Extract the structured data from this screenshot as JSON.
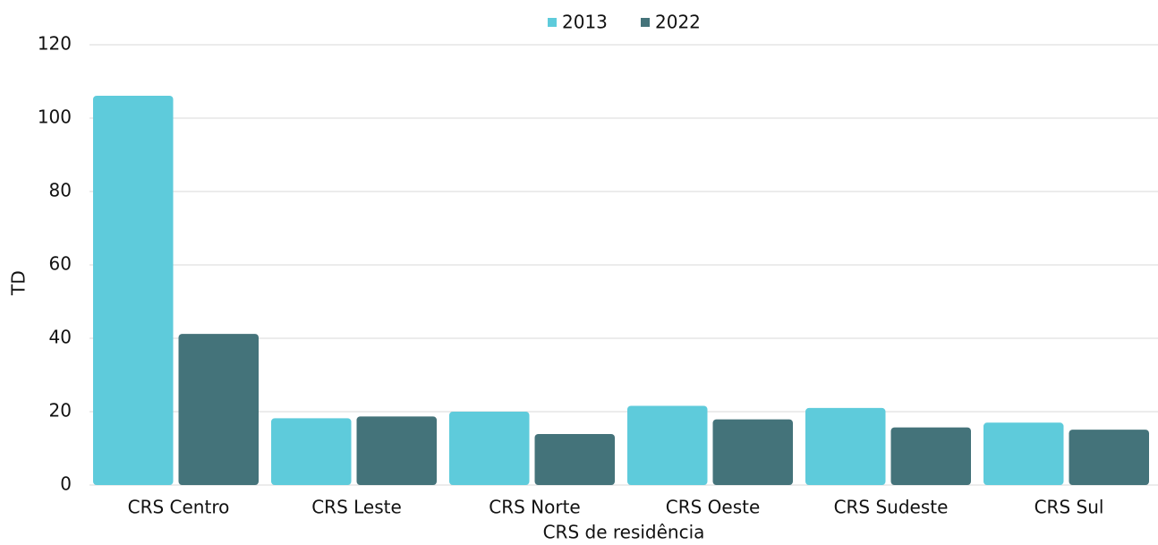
{
  "chart_data": {
    "type": "bar",
    "x_label": "CRS de residência",
    "y_label": "TD",
    "categories": [
      "CRS Centro",
      "CRS Leste",
      "CRS Norte",
      "CRS Oeste",
      "CRS Sudeste",
      "CRS Sul"
    ],
    "series": [
      {
        "name": "2013",
        "color": "#5ecbdb",
        "values": [
          106.1,
          18.2,
          20,
          21.6,
          21,
          17
        ]
      },
      {
        "name": "2022",
        "color": "#44737a",
        "values": [
          41.2,
          18.7,
          13.9,
          17.9,
          15.7,
          15.1
        ]
      }
    ],
    "ylim": [
      0,
      120
    ],
    "yticks": [
      0,
      20,
      40,
      60,
      80,
      100,
      120
    ],
    "grid": true,
    "legend": "top"
  }
}
